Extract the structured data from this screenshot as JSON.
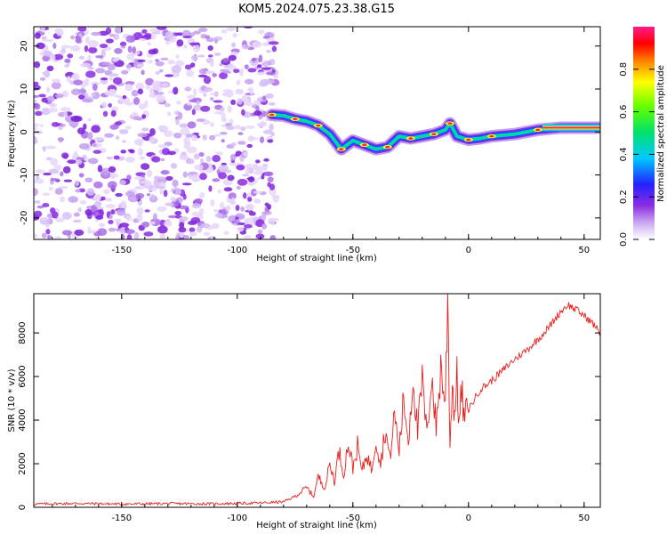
{
  "title": "KOM5.2024.075.23.38.G15",
  "colors": {
    "snr_line": "#e8211e",
    "ridge_low": "#8a2be2",
    "ridge_mid": "#2244ff",
    "ridge_high": "#00e0e0",
    "ridge_peak": "#ff2060"
  },
  "chart_data": [
    {
      "type": "heatmap",
      "xlabel": "Height of straight line (km)",
      "ylabel": "Frequency (Hz)",
      "xlim": [
        -188,
        57
      ],
      "ylim": [
        -25,
        24.5
      ],
      "xticks": [
        "-150",
        "-100",
        "-50",
        "0",
        "50"
      ],
      "yticks": [
        "20",
        "10",
        "0",
        "-10",
        "-20"
      ],
      "colorbar": {
        "label": "Normalized spectral amplitude",
        "range": [
          0,
          1
        ],
        "ticks": [
          "0.0",
          "0.2",
          "0.4",
          "0.6",
          "0.8"
        ]
      },
      "ridge": {
        "x": [
          -85,
          -80,
          -75,
          -70,
          -65,
          -60,
          -55,
          -50,
          -45,
          -40,
          -35,
          -30,
          -25,
          -20,
          -15,
          -10,
          -8,
          -5,
          0,
          5,
          10,
          20,
          30,
          40,
          50,
          57
        ],
        "y": [
          4,
          3.8,
          3,
          2.5,
          1.5,
          -0.5,
          -4,
          -2,
          -3,
          -4,
          -3.5,
          -1,
          -1.5,
          -1,
          -0.5,
          0.5,
          2,
          -1,
          -1.8,
          -1.5,
          -1,
          -0.5,
          0.5,
          1,
          1,
          1
        ]
      }
    },
    {
      "type": "line",
      "xlabel": "Height of straight line (km)",
      "ylabel": "SNR (10 * v/v)",
      "xlim": [
        -188,
        57
      ],
      "ylim": [
        0,
        9800
      ],
      "xticks": [
        "-150",
        "-100",
        "-50",
        "0",
        "50"
      ],
      "yticks": [
        "0",
        "2000",
        "4000",
        "6000",
        "8000"
      ],
      "series": [
        {
          "x": [
            -188,
            -170,
            -150,
            -130,
            -110,
            -90,
            -80,
            -75,
            -70,
            -67,
            -65,
            -62,
            -60,
            -58,
            -56,
            -54,
            -52,
            -50,
            -48,
            -46,
            -44,
            -42,
            -40,
            -38,
            -36,
            -34,
            -32,
            -30,
            -28,
            -26,
            -24,
            -22,
            -20,
            -18,
            -16,
            -14,
            -12,
            -10,
            -9,
            -8,
            -7,
            -6,
            -5,
            -4,
            -3,
            -2,
            0,
            5,
            10,
            15,
            20,
            25,
            30,
            35,
            40,
            43,
            46,
            50,
            54,
            57
          ],
          "y": [
            150,
            180,
            150,
            170,
            160,
            200,
            250,
            500,
            900,
            500,
            1400,
            900,
            2000,
            1200,
            2600,
            1500,
            3000,
            1800,
            2800,
            1600,
            2500,
            1700,
            3200,
            2000,
            3600,
            2200,
            4300,
            2600,
            5000,
            3000,
            6100,
            3400,
            5800,
            3200,
            6200,
            3600,
            6400,
            4800,
            9700,
            3000,
            5600,
            4300,
            5900,
            3800,
            5400,
            4100,
            4500,
            5400,
            5800,
            6300,
            6800,
            7200,
            7700,
            8300,
            9000,
            9300,
            9100,
            8800,
            8400,
            8000
          ]
        }
      ]
    }
  ]
}
